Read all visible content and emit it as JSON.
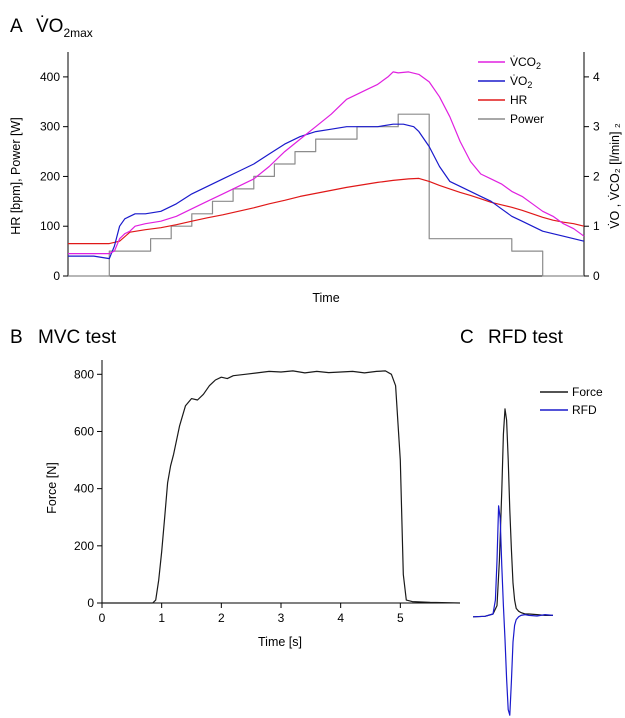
{
  "panels": [
    {
      "letter": "A",
      "title_main": "V̇O",
      "title_sub": "2max"
    },
    {
      "letter": "B",
      "title": "MVC test"
    },
    {
      "letter": "C",
      "title": "RFD test"
    }
  ],
  "colors": {
    "vco2": "#e020e0",
    "vo2": "#1a1acc",
    "hr": "#e01818",
    "power": "#8c8c8c",
    "force": "#1a1a1a",
    "rfd": "#1a1acc",
    "axis": "#000000"
  },
  "chart_data": [
    {
      "id": "A",
      "type": "line",
      "title": "",
      "xlabel": "Time",
      "ylabel": "HR [bpm], Power [W]",
      "ylabel_right": "V̇O , V̇CO₂ [l/min] ₂",
      "ylim": [
        0,
        450
      ],
      "ylim_right": [
        0,
        4.5
      ],
      "xlim": [
        0,
        100
      ],
      "yticks": [
        0,
        100,
        200,
        300,
        400
      ],
      "yticks_right": [
        0,
        1,
        2,
        3,
        4
      ],
      "legend_position": "top-right",
      "legend": [
        {
          "label_main": "V̇CO",
          "label_sub": "2",
          "color_key": "vco2"
        },
        {
          "label_main": "V̇O",
          "label_sub": "2",
          "color_key": "vo2"
        },
        {
          "label_main": "HR",
          "label_sub": "",
          "color_key": "hr"
        },
        {
          "label_main": "Power",
          "label_sub": "",
          "color_key": "power"
        }
      ],
      "series": [
        {
          "name": "V̇CO2",
          "axis": "right",
          "color_key": "vco2",
          "x": [
            0,
            5,
            8,
            9,
            10,
            11,
            12,
            13,
            15,
            18,
            21,
            24,
            27,
            30,
            33,
            36,
            39,
            42,
            45,
            48,
            51,
            54,
            56,
            58,
            60,
            62,
            63,
            64,
            66,
            68,
            70,
            72,
            74,
            76,
            78,
            80,
            82,
            84,
            86,
            88,
            90,
            92,
            94,
            96,
            98,
            100
          ],
          "y": [
            0.45,
            0.45,
            0.45,
            0.5,
            0.75,
            0.85,
            0.9,
            1.0,
            1.05,
            1.1,
            1.2,
            1.35,
            1.5,
            1.65,
            1.8,
            1.95,
            2.2,
            2.5,
            2.75,
            3.0,
            3.25,
            3.55,
            3.65,
            3.75,
            3.85,
            4.0,
            4.1,
            4.08,
            4.1,
            4.05,
            3.9,
            3.6,
            3.2,
            2.7,
            2.3,
            2.05,
            1.95,
            1.85,
            1.7,
            1.6,
            1.45,
            1.3,
            1.2,
            1.05,
            0.95,
            0.8
          ]
        },
        {
          "name": "V̇O2",
          "axis": "right",
          "color_key": "vo2",
          "x": [
            0,
            5,
            8,
            9,
            10,
            11,
            12,
            13,
            15,
            18,
            21,
            24,
            27,
            30,
            33,
            36,
            39,
            42,
            45,
            48,
            51,
            54,
            57,
            60,
            63,
            65,
            67,
            68,
            70,
            72,
            74,
            76,
            78,
            80,
            82,
            84,
            86,
            88,
            90,
            92,
            94,
            96,
            98,
            100
          ],
          "y": [
            0.4,
            0.4,
            0.35,
            0.6,
            1.0,
            1.15,
            1.2,
            1.25,
            1.25,
            1.3,
            1.45,
            1.65,
            1.8,
            1.95,
            2.1,
            2.25,
            2.45,
            2.65,
            2.8,
            2.9,
            2.95,
            3.0,
            3.0,
            3.0,
            3.05,
            3.05,
            3.0,
            2.9,
            2.6,
            2.2,
            1.9,
            1.8,
            1.7,
            1.6,
            1.5,
            1.35,
            1.2,
            1.1,
            1.0,
            0.9,
            0.85,
            0.8,
            0.75,
            0.7
          ]
        },
        {
          "name": "HR",
          "axis": "left",
          "color_key": "hr",
          "x": [
            0,
            4,
            8,
            10,
            12,
            15,
            18,
            21,
            24,
            27,
            30,
            33,
            36,
            39,
            42,
            45,
            48,
            51,
            54,
            57,
            60,
            63,
            66,
            68,
            70,
            72,
            74,
            76,
            78,
            80,
            82,
            84,
            86,
            88,
            90,
            92,
            94,
            96,
            98,
            100
          ],
          "y": [
            65,
            65,
            65,
            70,
            88,
            93,
            97,
            103,
            110,
            117,
            123,
            130,
            137,
            145,
            152,
            160,
            166,
            172,
            178,
            183,
            188,
            192,
            195,
            196,
            190,
            182,
            175,
            168,
            162,
            155,
            148,
            143,
            138,
            132,
            125,
            118,
            112,
            108,
            105,
            100
          ]
        },
        {
          "name": "Power",
          "axis": "left",
          "color_key": "power",
          "step": true,
          "x": [
            0,
            8,
            16,
            20,
            24,
            28,
            32,
            36,
            40,
            44,
            48,
            52,
            56,
            60,
            64,
            67,
            70,
            78,
            86,
            92,
            100
          ],
          "y": [
            0,
            50,
            75,
            100,
            125,
            150,
            175,
            200,
            225,
            250,
            275,
            275,
            300,
            300,
            325,
            325,
            75,
            75,
            50,
            0,
            0
          ]
        }
      ]
    },
    {
      "id": "B",
      "type": "line",
      "title": "",
      "xlabel": "Time [s]",
      "ylabel": "Force [N]",
      "xlim": [
        0,
        6
      ],
      "ylim": [
        0,
        850
      ],
      "xticks": [
        0,
        1,
        2,
        3,
        4,
        5
      ],
      "yticks": [
        0,
        200,
        400,
        600,
        800
      ],
      "series": [
        {
          "name": "Force",
          "color_key": "force",
          "x": [
            0,
            0.85,
            0.9,
            0.95,
            1.0,
            1.05,
            1.1,
            1.15,
            1.2,
            1.3,
            1.4,
            1.5,
            1.6,
            1.7,
            1.8,
            1.9,
            2.0,
            2.1,
            2.2,
            2.4,
            2.6,
            2.8,
            3.0,
            3.2,
            3.4,
            3.6,
            3.8,
            4.0,
            4.2,
            4.4,
            4.6,
            4.75,
            4.85,
            4.92,
            5.0,
            5.05,
            5.1,
            5.2,
            5.5,
            6.0
          ],
          "y": [
            0,
            0,
            10,
            80,
            180,
            300,
            420,
            480,
            520,
            620,
            690,
            715,
            710,
            730,
            760,
            780,
            790,
            785,
            795,
            800,
            805,
            810,
            808,
            812,
            805,
            810,
            806,
            808,
            810,
            805,
            810,
            812,
            800,
            760,
            500,
            100,
            10,
            5,
            2,
            0
          ]
        }
      ]
    },
    {
      "id": "C",
      "type": "line",
      "title": "",
      "xlim": [
        0,
        1
      ],
      "ylim": [
        -360,
        800
      ],
      "legend_position": "top-right",
      "legend": [
        {
          "label": "Force",
          "color_key": "force"
        },
        {
          "label": "RFD",
          "color_key": "rfd"
        }
      ],
      "series": [
        {
          "name": "Force",
          "color_key": "force",
          "x": [
            0,
            0.15,
            0.25,
            0.3,
            0.33,
            0.36,
            0.38,
            0.4,
            0.42,
            0.44,
            0.46,
            0.48,
            0.5,
            0.52,
            0.54,
            0.57,
            0.6,
            0.65,
            0.7,
            0.8,
            0.9,
            1.0
          ],
          "y": [
            0,
            2,
            10,
            40,
            200,
            450,
            650,
            740,
            700,
            560,
            380,
            240,
            120,
            60,
            30,
            20,
            15,
            10,
            10,
            8,
            5,
            5
          ]
        },
        {
          "name": "RFD",
          "color_key": "rfd",
          "x": [
            0,
            0.15,
            0.25,
            0.28,
            0.3,
            0.32,
            0.34,
            0.36,
            0.38,
            0.4,
            0.42,
            0.44,
            0.46,
            0.48,
            0.5,
            0.52,
            0.54,
            0.57,
            0.6,
            0.65,
            0.7,
            0.8,
            0.9,
            1.0
          ],
          "y": [
            0,
            2,
            10,
            60,
            200,
            395,
            350,
            180,
            40,
            -80,
            -220,
            -330,
            -350,
            -230,
            -90,
            -30,
            -10,
            0,
            5,
            8,
            5,
            3,
            8,
            5
          ]
        }
      ]
    }
  ]
}
